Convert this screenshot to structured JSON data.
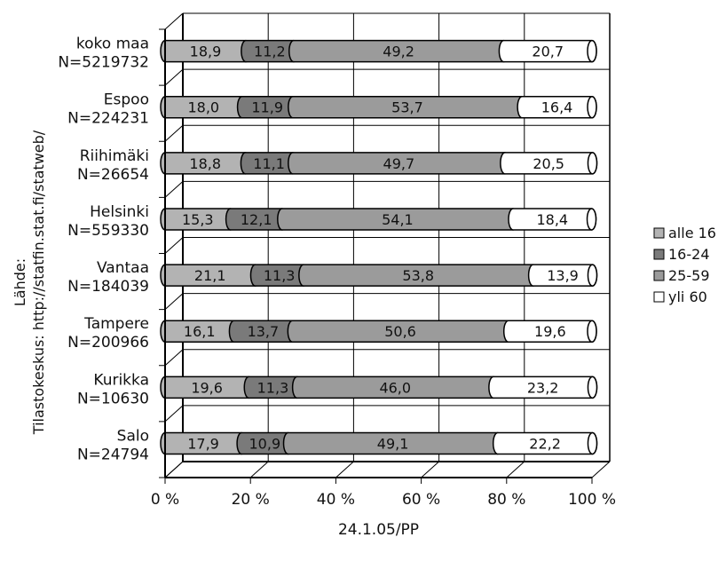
{
  "chart_data": {
    "type": "bar",
    "orientation": "horizontal",
    "stacked": "percent",
    "categories": [
      {
        "name": "koko maa",
        "n": "N=5219732"
      },
      {
        "name": "Espoo",
        "n": "N=224231"
      },
      {
        "name": "Riihimäki",
        "n": "N=26654"
      },
      {
        "name": "Helsinki",
        "n": "N=559330"
      },
      {
        "name": "Vantaa",
        "n": "N=184039"
      },
      {
        "name": "Tampere",
        "n": "N=200966"
      },
      {
        "name": "Kurikka",
        "n": "N=10630"
      },
      {
        "name": "Salo",
        "n": "N=24794"
      }
    ],
    "series": [
      {
        "name": "alle 16",
        "color": "#b3b3b3",
        "values": [
          18.9,
          18.0,
          18.8,
          15.3,
          21.1,
          16.1,
          19.6,
          17.9
        ],
        "labels": [
          "18,9",
          "18,0",
          "18,8",
          "15,3",
          "21,1",
          "16,1",
          "19,6",
          "17,9"
        ]
      },
      {
        "name": "16-24",
        "color": "#7a7a7a",
        "values": [
          11.2,
          11.9,
          11.1,
          12.1,
          11.3,
          13.7,
          11.3,
          10.9
        ],
        "labels": [
          "11,2",
          "11,9",
          "11,1",
          "12,1",
          "11,3",
          "13,7",
          "11,3",
          "10,9"
        ]
      },
      {
        "name": "25-59",
        "color": "#9b9b9b",
        "values": [
          49.2,
          53.7,
          49.7,
          54.1,
          53.8,
          50.6,
          46.0,
          49.1
        ],
        "labels": [
          "49,2",
          "53,7",
          "49,7",
          "54,1",
          "53,8",
          "50,6",
          "46,0",
          "49,1"
        ]
      },
      {
        "name": "yli 60",
        "color": "#ffffff",
        "values": [
          20.7,
          16.4,
          20.5,
          18.4,
          13.9,
          19.6,
          23.2,
          22.2
        ],
        "labels": [
          "20,7",
          "16,4",
          "20,5",
          "18,4",
          "13,9",
          "19,6",
          "23,2",
          "22,2"
        ]
      }
    ],
    "xlim": [
      0,
      100
    ],
    "x_ticks": [
      "0 %",
      "20 %",
      "40 %",
      "60 %",
      "80 %",
      "100 %"
    ],
    "xlabel": "24.1.05/PP",
    "ylabel": "Lähde:\nTilastokeskus: http://statfin.stat.fi/statweb/",
    "ylabel_lines": [
      "Lähde:",
      "Tilastokeskus: http://statfin.stat.fi/statweb/"
    ],
    "legend": "right",
    "grid": true
  }
}
